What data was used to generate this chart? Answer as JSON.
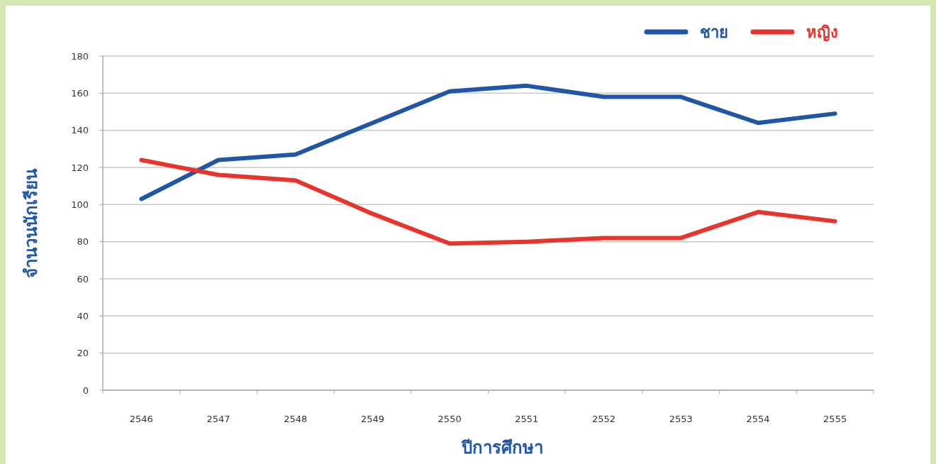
{
  "chart_data": {
    "type": "line",
    "xlabel": "ปีการศึกษา",
    "ylabel": "จำนวนนักเรียน",
    "categories": [
      "2546",
      "2547",
      "2548",
      "2549",
      "2550",
      "2551",
      "2552",
      "2553",
      "2554",
      "2555"
    ],
    "series": [
      {
        "name": "ชาย",
        "color": "#1f56a8",
        "values": [
          103,
          124,
          127,
          144,
          161,
          164,
          158,
          158,
          144,
          149
        ]
      },
      {
        "name": "หญิง",
        "color": "#e8342a",
        "values": [
          124,
          116,
          113,
          95,
          79,
          80,
          82,
          82,
          96,
          91
        ]
      }
    ],
    "ylim": [
      0,
      180
    ],
    "yticks": [
      0,
      20,
      40,
      60,
      80,
      100,
      120,
      140,
      160,
      180
    ],
    "grid": "y",
    "legend": "top right",
    "marker": "none",
    "line_style": "solid"
  }
}
